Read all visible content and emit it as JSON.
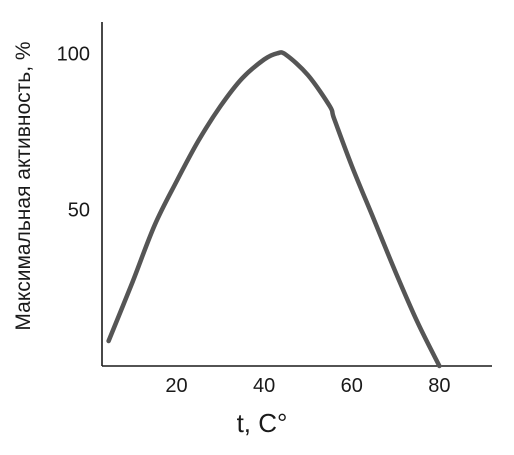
{
  "chart_data": {
    "type": "line",
    "title": "",
    "xlabel": "t, C°",
    "ylabel": "Максимальная активность, %",
    "xlim": [
      3,
      92
    ],
    "ylim": [
      0,
      110
    ],
    "x_ticks": [
      20,
      40,
      60,
      80
    ],
    "y_ticks": [
      50,
      100
    ],
    "grid": false,
    "legend": "none",
    "series": [
      {
        "color": "#555555",
        "x": [
          4.5,
          10,
          15,
          20,
          25,
          30,
          35,
          40,
          43,
          45,
          50,
          55,
          56,
          60,
          65,
          70,
          75,
          80
        ],
        "y": [
          8,
          27,
          45,
          59,
          72,
          83,
          92,
          98,
          100,
          99.5,
          93,
          83,
          79,
          64,
          47,
          30,
          14,
          0
        ]
      }
    ]
  }
}
